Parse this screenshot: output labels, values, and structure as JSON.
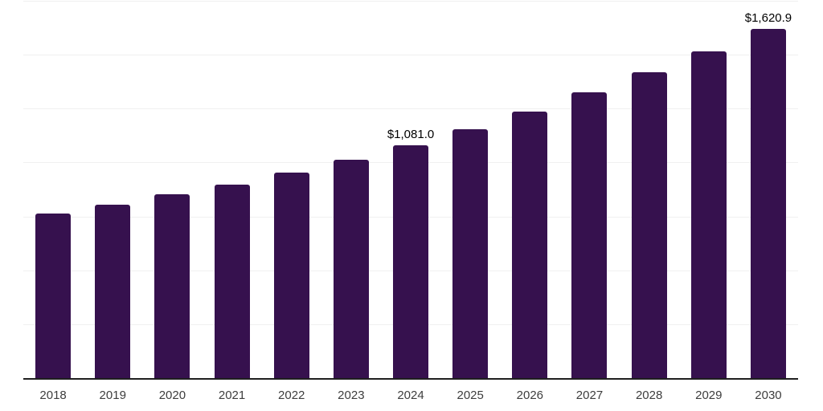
{
  "chart_data": {
    "type": "bar",
    "categories": [
      "2018",
      "2019",
      "2020",
      "2021",
      "2022",
      "2023",
      "2024",
      "2025",
      "2026",
      "2027",
      "2028",
      "2029",
      "2030"
    ],
    "values": [
      764,
      803,
      851,
      898,
      954,
      1012,
      1081.0,
      1156,
      1237,
      1325,
      1418,
      1517,
      1620.9
    ],
    "point_labels": [
      {
        "category": "2024",
        "text": "$1,081.0"
      },
      {
        "category": "2030",
        "text": "$1,620.9"
      }
    ],
    "title": "",
    "xlabel": "",
    "ylabel": "",
    "ylim": [
      0,
      1750
    ],
    "gridline_step": 250,
    "grid": "horizontal",
    "legend": "none"
  },
  "colors": {
    "bar": "#36114e",
    "grid": "#f0f0f0",
    "axis": "#1f1f1f",
    "tick_label": "#3d3d3d",
    "value_label": "#000000",
    "background": "#ffffff"
  }
}
